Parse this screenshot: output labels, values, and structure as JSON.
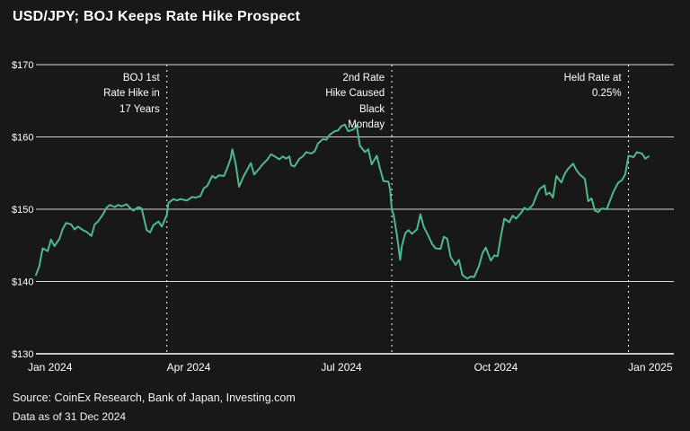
{
  "header": {
    "title": "USD/JPY; BOJ Keeps Rate Hike Prospect"
  },
  "footer": {
    "source": "Source: CoinEx Research, Bank of Japan, Investing.com",
    "as_of": "Data as of 31 Dec 2024"
  },
  "chart_data": {
    "type": "line",
    "title": "USD/JPY; BOJ Keeps Rate Hike Prospect",
    "xlabel": "",
    "ylabel": "",
    "ylim": [
      130,
      170
    ],
    "x_range_days": [
      0,
      380
    ],
    "grid": "horizontal-only",
    "legend": "none",
    "colors": {
      "background": "#181818",
      "line": "#4eb98c",
      "grid": "#d4d4d4",
      "axis": "#ffffff",
      "dashed": "#ffffff",
      "text": "#ffffff"
    },
    "y_ticks": [
      {
        "value": 170,
        "label": "$170"
      },
      {
        "value": 160,
        "label": "$160"
      },
      {
        "value": 150,
        "label": "$150"
      },
      {
        "value": 140,
        "label": "$140"
      },
      {
        "value": 130,
        "label": "$130"
      }
    ],
    "x_ticks": [
      {
        "day": 0,
        "label": "Jan 2024"
      },
      {
        "day": 91,
        "label": "Apr 2024"
      },
      {
        "day": 182,
        "label": "Jul 2024"
      },
      {
        "day": 274,
        "label": "Oct 2024"
      },
      {
        "day": 366,
        "label": "Jan 2025"
      }
    ],
    "annotations": [
      {
        "day": 78,
        "label": "BOJ 1st\nRate Hike in\n17 Years"
      },
      {
        "day": 212,
        "label": "2nd Rate\nHike Caused\nBlack\nMonday"
      },
      {
        "day": 353,
        "label": "Held Rate at\n0.25%"
      }
    ],
    "series": [
      {
        "name": "USD/JPY",
        "x_days": [
          0,
          2,
          4,
          7,
          9,
          11,
          14,
          16,
          18,
          21,
          23,
          25,
          28,
          30,
          33,
          35,
          37,
          40,
          42,
          44,
          47,
          49,
          51,
          54,
          56,
          58,
          61,
          63,
          66,
          68,
          70,
          73,
          75,
          78,
          79,
          82,
          84,
          86,
          88,
          90,
          93,
          95,
          98,
          100,
          102,
          105,
          107,
          109,
          112,
          114,
          116,
          117,
          119,
          121,
          124,
          126,
          128,
          130,
          133,
          135,
          138,
          140,
          143,
          145,
          147,
          149,
          151,
          152,
          154,
          157,
          159,
          161,
          164,
          166,
          168,
          171,
          173,
          175,
          178,
          180,
          182,
          184,
          186,
          189,
          191,
          193,
          196,
          198,
          200,
          203,
          205,
          207,
          210,
          211,
          212,
          213,
          215,
          217,
          218,
          220,
          222,
          224,
          227,
          229,
          231,
          234,
          236,
          238,
          241,
          243,
          245,
          247,
          250,
          252,
          254,
          257,
          259,
          261,
          264,
          266,
          268,
          271,
          273,
          275,
          277,
          279,
          282,
          284,
          286,
          289,
          291,
          293,
          296,
          298,
          300,
          303,
          304,
          306,
          308,
          310,
          313,
          315,
          317,
          320,
          322,
          324,
          327,
          329,
          331,
          333,
          335,
          337,
          340,
          342,
          344,
          347,
          349,
          351,
          353,
          356,
          358,
          361,
          363,
          365
        ],
        "values": [
          140.9,
          142.1,
          144.6,
          144.2,
          145.8,
          144.9,
          145.9,
          147.3,
          148.1,
          147.9,
          147.2,
          147.6,
          147.1,
          146.9,
          146.3,
          147.9,
          148.3,
          149.3,
          150.2,
          150.6,
          150.3,
          150.6,
          150.4,
          150.7,
          150.2,
          149.8,
          150.3,
          150.1,
          147.1,
          146.8,
          147.8,
          148.3,
          147.6,
          149.2,
          150.9,
          151.4,
          151.2,
          151.4,
          151.3,
          151.2,
          151.7,
          151.6,
          151.8,
          152.9,
          153.2,
          154.6,
          154.3,
          154.7,
          154.6,
          155.7,
          157.0,
          158.3,
          156.3,
          153.1,
          154.7,
          155.5,
          156.4,
          154.8,
          155.6,
          156.2,
          156.9,
          157.6,
          157.2,
          156.9,
          157.3,
          157.0,
          157.3,
          156.1,
          155.9,
          157.0,
          157.3,
          157.9,
          157.7,
          158.0,
          159.1,
          159.7,
          159.6,
          160.3,
          160.8,
          160.9,
          161.5,
          161.7,
          160.8,
          161.0,
          161.6,
          158.8,
          157.9,
          158.3,
          156.2,
          157.4,
          155.6,
          153.9,
          153.8,
          152.7,
          149.9,
          149.3,
          146.5,
          143.0,
          144.9,
          146.7,
          147.1,
          146.6,
          147.2,
          149.3,
          147.6,
          146.2,
          145.2,
          144.6,
          144.5,
          146.2,
          145.9,
          143.4,
          142.3,
          143.0,
          140.9,
          140.4,
          140.7,
          140.6,
          142.2,
          143.9,
          144.7,
          142.9,
          143.6,
          143.5,
          146.3,
          148.7,
          148.2,
          149.1,
          148.7,
          149.5,
          150.2,
          149.9,
          150.6,
          151.8,
          152.8,
          153.3,
          152.0,
          152.3,
          151.6,
          154.6,
          153.7,
          154.9,
          155.6,
          156.3,
          155.4,
          154.8,
          154.2,
          151.1,
          151.5,
          149.8,
          149.6,
          150.1,
          150.0,
          151.2,
          152.4,
          153.7,
          154.0,
          154.8,
          157.4,
          157.2,
          157.9,
          157.7,
          157.0,
          157.3
        ]
      }
    ]
  }
}
